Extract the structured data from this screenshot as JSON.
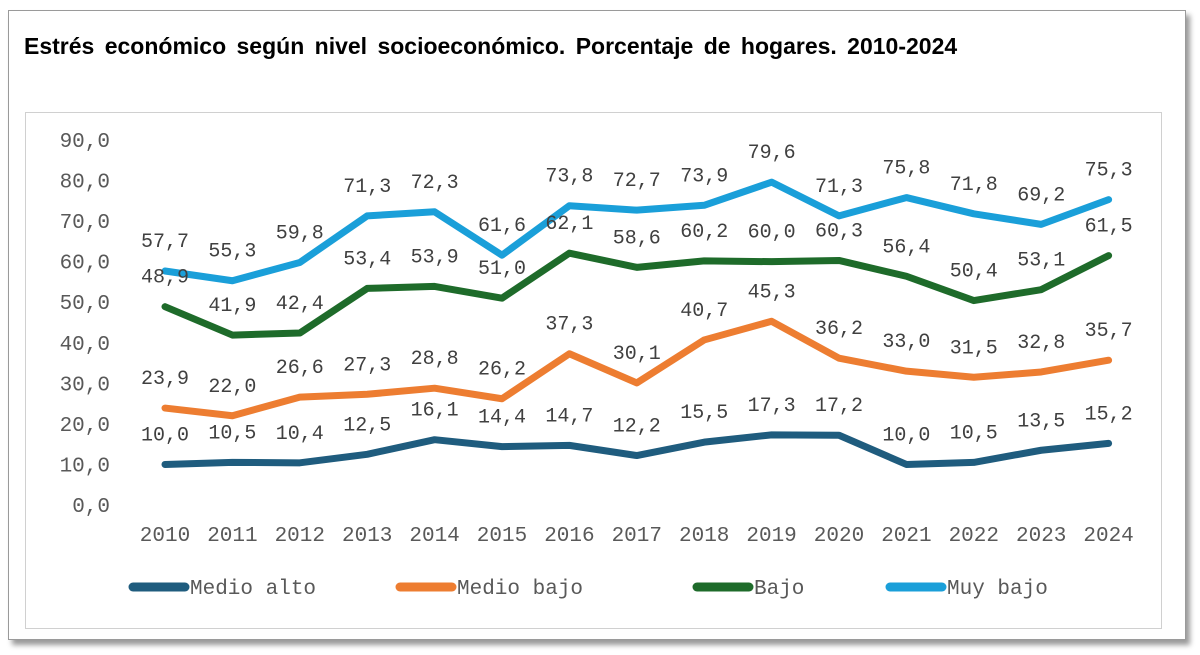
{
  "chart_data": {
    "type": "line",
    "title": "Estrés económico según nivel socioeconómico. Porcentaje de hogares. 2010-2024",
    "xlabel": "",
    "ylabel": "",
    "ylim": [
      0,
      90
    ],
    "y_ticks": [
      "0,0",
      "10,0",
      "20,0",
      "30,0",
      "40,0",
      "50,0",
      "60,0",
      "70,0",
      "80,0",
      "90,0"
    ],
    "categories": [
      "2010",
      "2011",
      "2012",
      "2013",
      "2014",
      "2015",
      "2016",
      "2017",
      "2018",
      "2019",
      "2020",
      "2021",
      "2022",
      "2023",
      "2024"
    ],
    "legend_position": "bottom",
    "grid": false,
    "series": [
      {
        "name": "Medio alto",
        "color": "#1F5C7E",
        "values": [
          10.0,
          10.5,
          10.4,
          12.5,
          16.1,
          14.4,
          14.7,
          12.2,
          15.5,
          17.3,
          17.2,
          10.0,
          10.5,
          13.5,
          15.2
        ]
      },
      {
        "name": "Medio bajo",
        "color": "#ED7D31",
        "values": [
          23.9,
          22.0,
          26.6,
          27.3,
          28.8,
          26.2,
          37.3,
          30.1,
          40.7,
          45.3,
          36.2,
          33.0,
          31.5,
          32.8,
          35.7
        ]
      },
      {
        "name": "Bajo",
        "color": "#1E6B2A",
        "values": [
          48.9,
          41.9,
          42.4,
          53.4,
          53.9,
          51.0,
          62.1,
          58.6,
          60.2,
          60.0,
          60.3,
          56.4,
          50.4,
          53.1,
          61.5
        ]
      },
      {
        "name": "Muy bajo",
        "color": "#1A9FD9",
        "values": [
          57.7,
          55.3,
          59.8,
          71.3,
          72.3,
          61.6,
          73.8,
          72.7,
          73.9,
          79.6,
          71.3,
          75.8,
          71.8,
          69.2,
          75.3
        ]
      }
    ]
  }
}
